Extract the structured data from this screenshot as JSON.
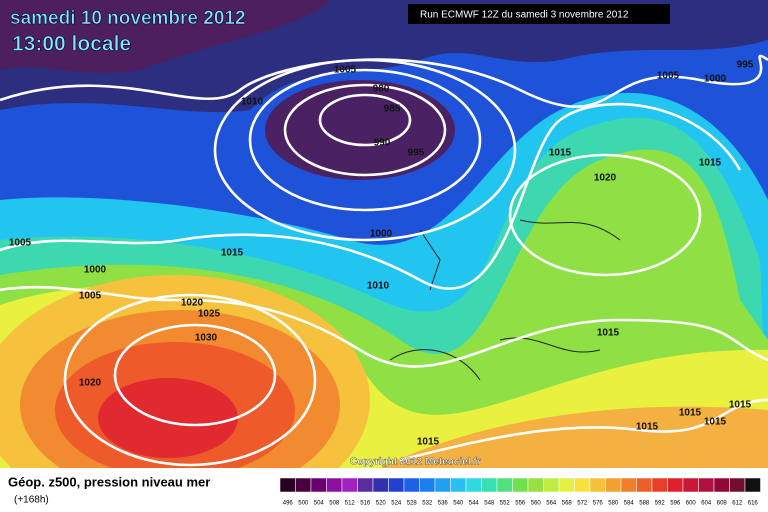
{
  "header": {
    "date": "samedi 10 novembre 2012",
    "time": "13:00 locale",
    "run": "Run ECMWF 12Z du samedi 3 novembre 2012"
  },
  "isobar_labels": [
    1005,
    980,
    985,
    1010,
    990,
    995,
    1005,
    1000,
    995,
    1015,
    1015,
    1020,
    1005,
    1000,
    1005,
    1000,
    1015,
    1010,
    1020,
    1025,
    1030,
    1020,
    1015,
    1015,
    1015,
    1015,
    1015,
    1015
  ],
  "copyright": "Copyright 2012 Meteociel.fr",
  "legend": {
    "title": "Géop. z500, pression niveau mer",
    "lead_time": "(+168h)",
    "scale": [
      496,
      500,
      504,
      508,
      512,
      516,
      520,
      524,
      528,
      532,
      536,
      540,
      544,
      548,
      552,
      556,
      560,
      564,
      568,
      572,
      576,
      580,
      584,
      588,
      592,
      596,
      600,
      604,
      608,
      612,
      616
    ]
  }
}
